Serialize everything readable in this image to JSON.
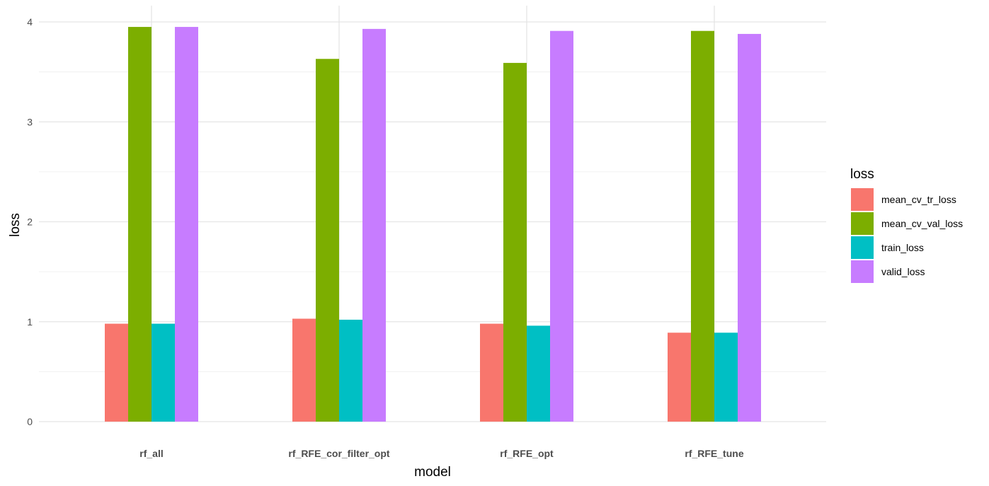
{
  "chart_data": {
    "type": "bar",
    "xlabel": "model",
    "ylabel": "loss",
    "categories": [
      "rf_all",
      "rf_RFE_cor_filter_opt",
      "rf_RFE_opt",
      "rf_RFE_tune"
    ],
    "series": [
      {
        "name": "mean_cv_tr_loss",
        "color": "#F8766D",
        "values": [
          0.98,
          1.03,
          0.98,
          0.89
        ]
      },
      {
        "name": "mean_cv_val_loss",
        "color": "#7CAE00",
        "values": [
          3.95,
          3.63,
          3.59,
          3.91
        ]
      },
      {
        "name": "train_loss",
        "color": "#00BFC4",
        "values": [
          0.98,
          1.02,
          0.96,
          0.89
        ]
      },
      {
        "name": "valid_loss",
        "color": "#C77CFF",
        "values": [
          3.95,
          3.93,
          3.91,
          3.88
        ]
      }
    ],
    "ylim": [
      0,
      4.1
    ],
    "yticks": [
      0,
      1,
      2,
      3,
      4
    ],
    "grid": true,
    "legend": {
      "title": "loss",
      "position": "right"
    }
  }
}
